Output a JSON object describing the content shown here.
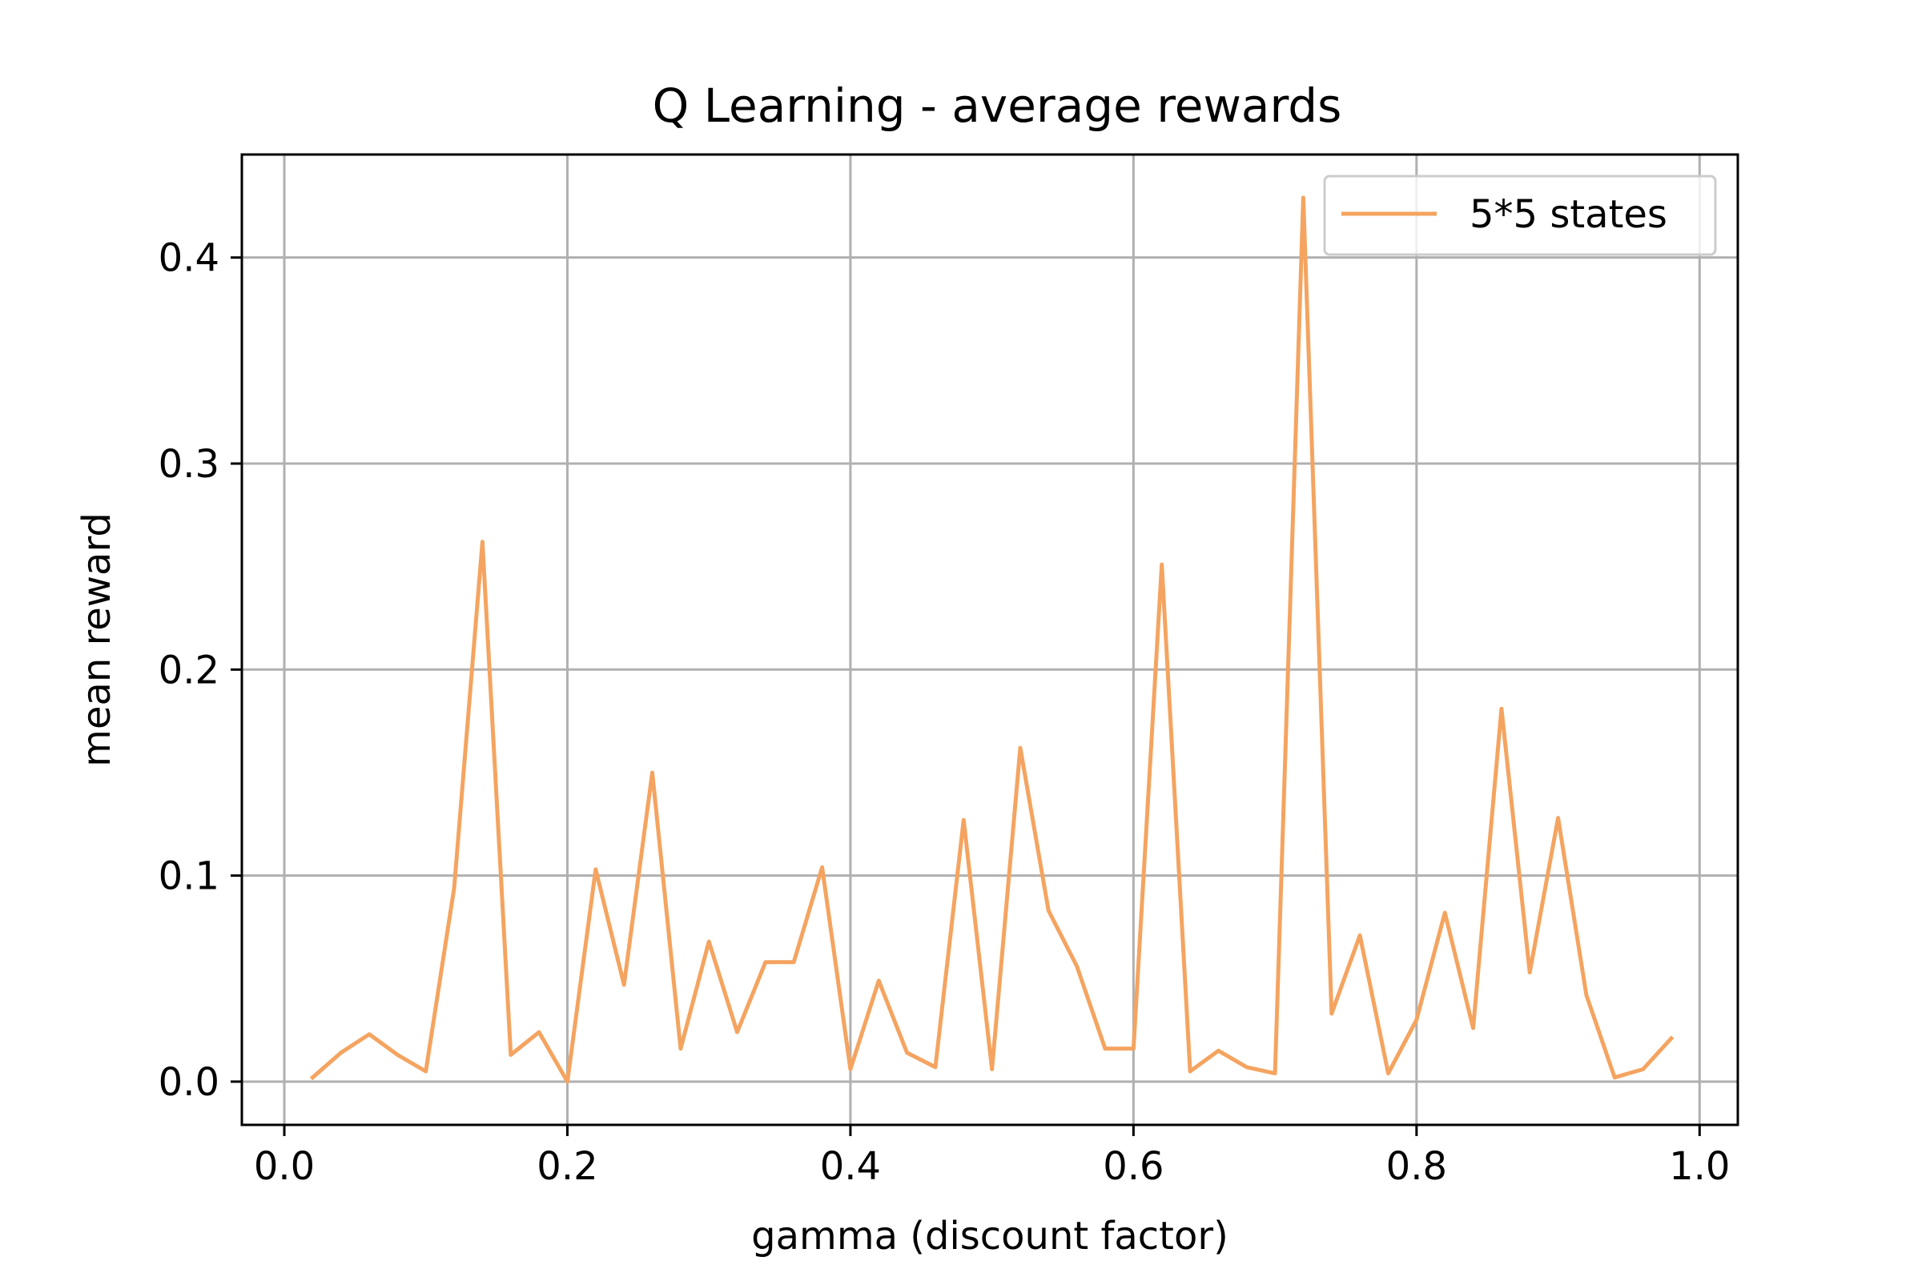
{
  "chart_data": {
    "type": "line",
    "title": "Q Learning - average rewards",
    "xlabel": "gamma (discount factor)",
    "ylabel": "mean reward",
    "xlim": [
      -0.03,
      1.027
    ],
    "ylim": [
      -0.021,
      0.45
    ],
    "xticks": [
      0.0,
      0.2,
      0.4,
      0.6,
      0.8,
      1.0
    ],
    "xtick_labels": [
      "0.0",
      "0.2",
      "0.4",
      "0.6",
      "0.8",
      "1.0"
    ],
    "yticks": [
      0.0,
      0.1,
      0.2,
      0.3,
      0.4
    ],
    "ytick_labels": [
      "0.0",
      "0.1",
      "0.2",
      "0.3",
      "0.4"
    ],
    "grid": true,
    "legend_position": "top-right",
    "series": [
      {
        "name": "5*5 states",
        "color": "#f4a460",
        "x": [
          0.02,
          0.04,
          0.06,
          0.08,
          0.1,
          0.12,
          0.14,
          0.16,
          0.18,
          0.2,
          0.22,
          0.24,
          0.26,
          0.28,
          0.3,
          0.32,
          0.34,
          0.36,
          0.38,
          0.4,
          0.42,
          0.44,
          0.46,
          0.48,
          0.5,
          0.52,
          0.54,
          0.56,
          0.58,
          0.6,
          0.62,
          0.64,
          0.66,
          0.68,
          0.7,
          0.72,
          0.74,
          0.76,
          0.78,
          0.8,
          0.82,
          0.84,
          0.86,
          0.88,
          0.9,
          0.92,
          0.94,
          0.96,
          0.98
        ],
        "y": [
          0.002,
          0.014,
          0.023,
          0.013,
          0.005,
          0.094,
          0.262,
          0.013,
          0.024,
          0.0,
          0.103,
          0.047,
          0.15,
          0.016,
          0.068,
          0.024,
          0.058,
          0.058,
          0.104,
          0.006,
          0.049,
          0.014,
          0.007,
          0.127,
          0.006,
          0.162,
          0.083,
          0.056,
          0.016,
          0.016,
          0.251,
          0.005,
          0.015,
          0.007,
          0.004,
          0.429,
          0.033,
          0.071,
          0.004,
          0.03,
          0.082,
          0.026,
          0.181,
          0.053,
          0.128,
          0.042,
          0.002,
          0.006,
          0.021
        ]
      }
    ]
  }
}
